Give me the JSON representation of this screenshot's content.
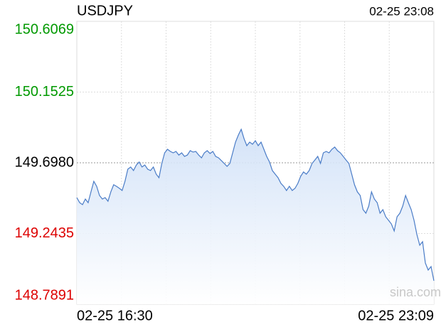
{
  "chart_data": {
    "type": "line",
    "title": "USDJPY",
    "timestamp": "02-25 23:08",
    "watermark": "sina.com",
    "x_labels": [
      "02-25 16:30",
      "02-25 23:09"
    ],
    "ylim": [
      148.7891,
      150.6069
    ],
    "yticks": [
      150.6069,
      150.1525,
      149.698,
      149.2435,
      148.7891
    ],
    "ytick_labels": [
      "150.6069",
      "150.1525",
      "149.6980",
      "149.2435",
      "148.7891"
    ],
    "ytick_colors": [
      "#009900",
      "#009900",
      "#000000",
      "#dd0000",
      "#dd0000"
    ],
    "grid": true,
    "series": [
      {
        "name": "USDJPY",
        "color": "#4a7cc7",
        "values": [
          149.474,
          149.442,
          149.429,
          149.465,
          149.442,
          149.511,
          149.579,
          149.547,
          149.488,
          149.465,
          149.474,
          149.451,
          149.511,
          149.557,
          149.547,
          149.534,
          149.52,
          149.579,
          149.657,
          149.671,
          149.648,
          149.684,
          149.703,
          149.671,
          149.684,
          149.657,
          149.648,
          149.671,
          149.625,
          149.602,
          149.694,
          149.762,
          149.785,
          149.771,
          149.762,
          149.771,
          149.748,
          149.762,
          149.739,
          149.748,
          149.776,
          149.767,
          149.771,
          149.748,
          149.73,
          149.762,
          149.776,
          149.758,
          149.771,
          149.739,
          149.73,
          149.712,
          149.694,
          149.675,
          149.694,
          149.762,
          149.831,
          149.876,
          149.913,
          149.853,
          149.808,
          149.831,
          149.817,
          149.84,
          149.808,
          149.831,
          149.785,
          149.739,
          149.703,
          149.648,
          149.625,
          149.602,
          149.566,
          149.547,
          149.52,
          149.547,
          149.52,
          149.534,
          149.566,
          149.611,
          149.639,
          149.625,
          149.648,
          149.694,
          149.716,
          149.739,
          149.694,
          149.762,
          149.771,
          149.762,
          149.785,
          149.799,
          149.776,
          149.762,
          149.739,
          149.716,
          149.694,
          149.625,
          149.557,
          149.511,
          149.488,
          149.397,
          149.374,
          149.42,
          149.511,
          149.465,
          149.442,
          149.374,
          149.397,
          149.351,
          149.328,
          149.305,
          149.26,
          149.351,
          149.374,
          149.42,
          149.488,
          149.442,
          149.397,
          149.328,
          149.237,
          149.168,
          149.191,
          149.054,
          149.009,
          149.031,
          148.94
        ]
      }
    ]
  }
}
